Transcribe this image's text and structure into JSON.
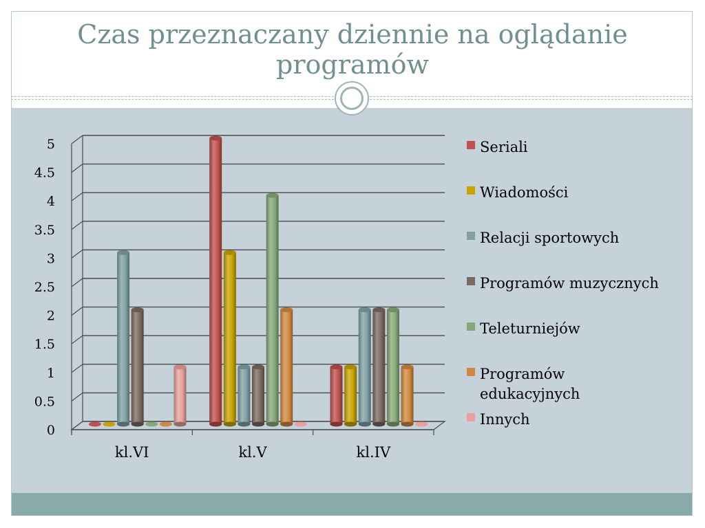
{
  "slide": {
    "title_line1": "Czas przeznaczany dziennie na oglądanie",
    "title_line2": "programów"
  },
  "chart_data": {
    "type": "bar",
    "categories": [
      "kl.VI",
      "kl.V",
      "kl.IV"
    ],
    "ylim": [
      0,
      5
    ],
    "yticks": [
      "0",
      "0.5",
      "1",
      "1.5",
      "2",
      "2.5",
      "3",
      "3.5",
      "4",
      "4.5",
      "5"
    ],
    "grid": true,
    "legend_position": "right",
    "series": [
      {
        "name": "Seriali",
        "color": "#c0504d",
        "values": [
          0,
          5,
          1
        ]
      },
      {
        "name": "Wiadomości",
        "color": "#c8a400",
        "values": [
          0,
          3,
          1
        ]
      },
      {
        "name": "Relacji sportowych",
        "color": "#7fa1a4",
        "values": [
          3,
          1,
          2
        ]
      },
      {
        "name": "Programów muzycznych",
        "color": "#7a6a5f",
        "values": [
          2,
          1,
          2
        ]
      },
      {
        "name": "Teleturniejów",
        "color": "#86a878",
        "values": [
          0,
          4,
          2
        ]
      },
      {
        "name": "Programów edukacyjnych",
        "color": "#d08a3f",
        "values": [
          0,
          2,
          1
        ]
      },
      {
        "name": "Innych",
        "color": "#e8a09a",
        "values": [
          1,
          0,
          0
        ]
      }
    ],
    "legend_lines": [
      [
        "Seriali"
      ],
      [
        "Wiadomości"
      ],
      [
        "Relacji sportowych"
      ],
      [
        "Programów muzycznych"
      ],
      [
        "Teleturniejów"
      ],
      [
        "Programów",
        "edukacyjnych"
      ],
      [
        "Innych"
      ]
    ]
  }
}
